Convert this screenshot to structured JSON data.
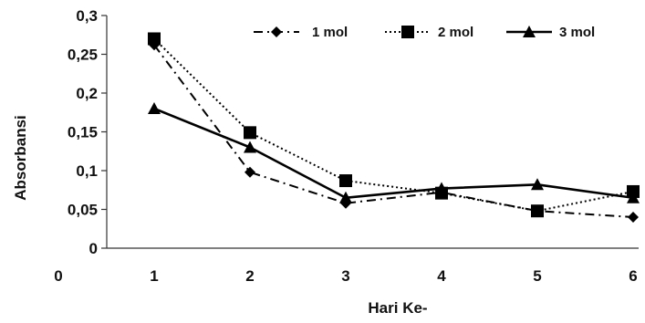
{
  "chart_data": {
    "type": "line",
    "xlabel": "Hari Ke-",
    "ylabel": "Absorbansi",
    "x_tick_labels": [
      "0",
      "1",
      "2",
      "3",
      "4",
      "5",
      "6"
    ],
    "y_tick_labels": [
      "0",
      "0,05",
      "0,1",
      "0,15",
      "0,2",
      "0,25",
      "0,3"
    ],
    "xlim": [
      0,
      6
    ],
    "ylim": [
      0,
      0.3
    ],
    "grid": false,
    "legend_position": "top-right",
    "series": [
      {
        "name": "1 mol",
        "x": [
          1,
          2,
          3,
          4,
          5,
          6
        ],
        "y": [
          0.262,
          0.098,
          0.058,
          0.072,
          0.048,
          0.04
        ],
        "line_style": "dash-dot",
        "marker": "diamond",
        "color": "#000000"
      },
      {
        "name": "2 mol",
        "x": [
          1,
          2,
          3,
          4,
          5,
          6
        ],
        "y": [
          0.27,
          0.149,
          0.087,
          0.071,
          0.048,
          0.073
        ],
        "line_style": "dotted",
        "marker": "square",
        "color": "#000000"
      },
      {
        "name": "3 mol",
        "x": [
          1,
          2,
          3,
          4,
          5,
          6
        ],
        "y": [
          0.18,
          0.13,
          0.065,
          0.077,
          0.082,
          0.065
        ],
        "line_style": "solid",
        "marker": "triangle",
        "color": "#000000"
      }
    ]
  }
}
